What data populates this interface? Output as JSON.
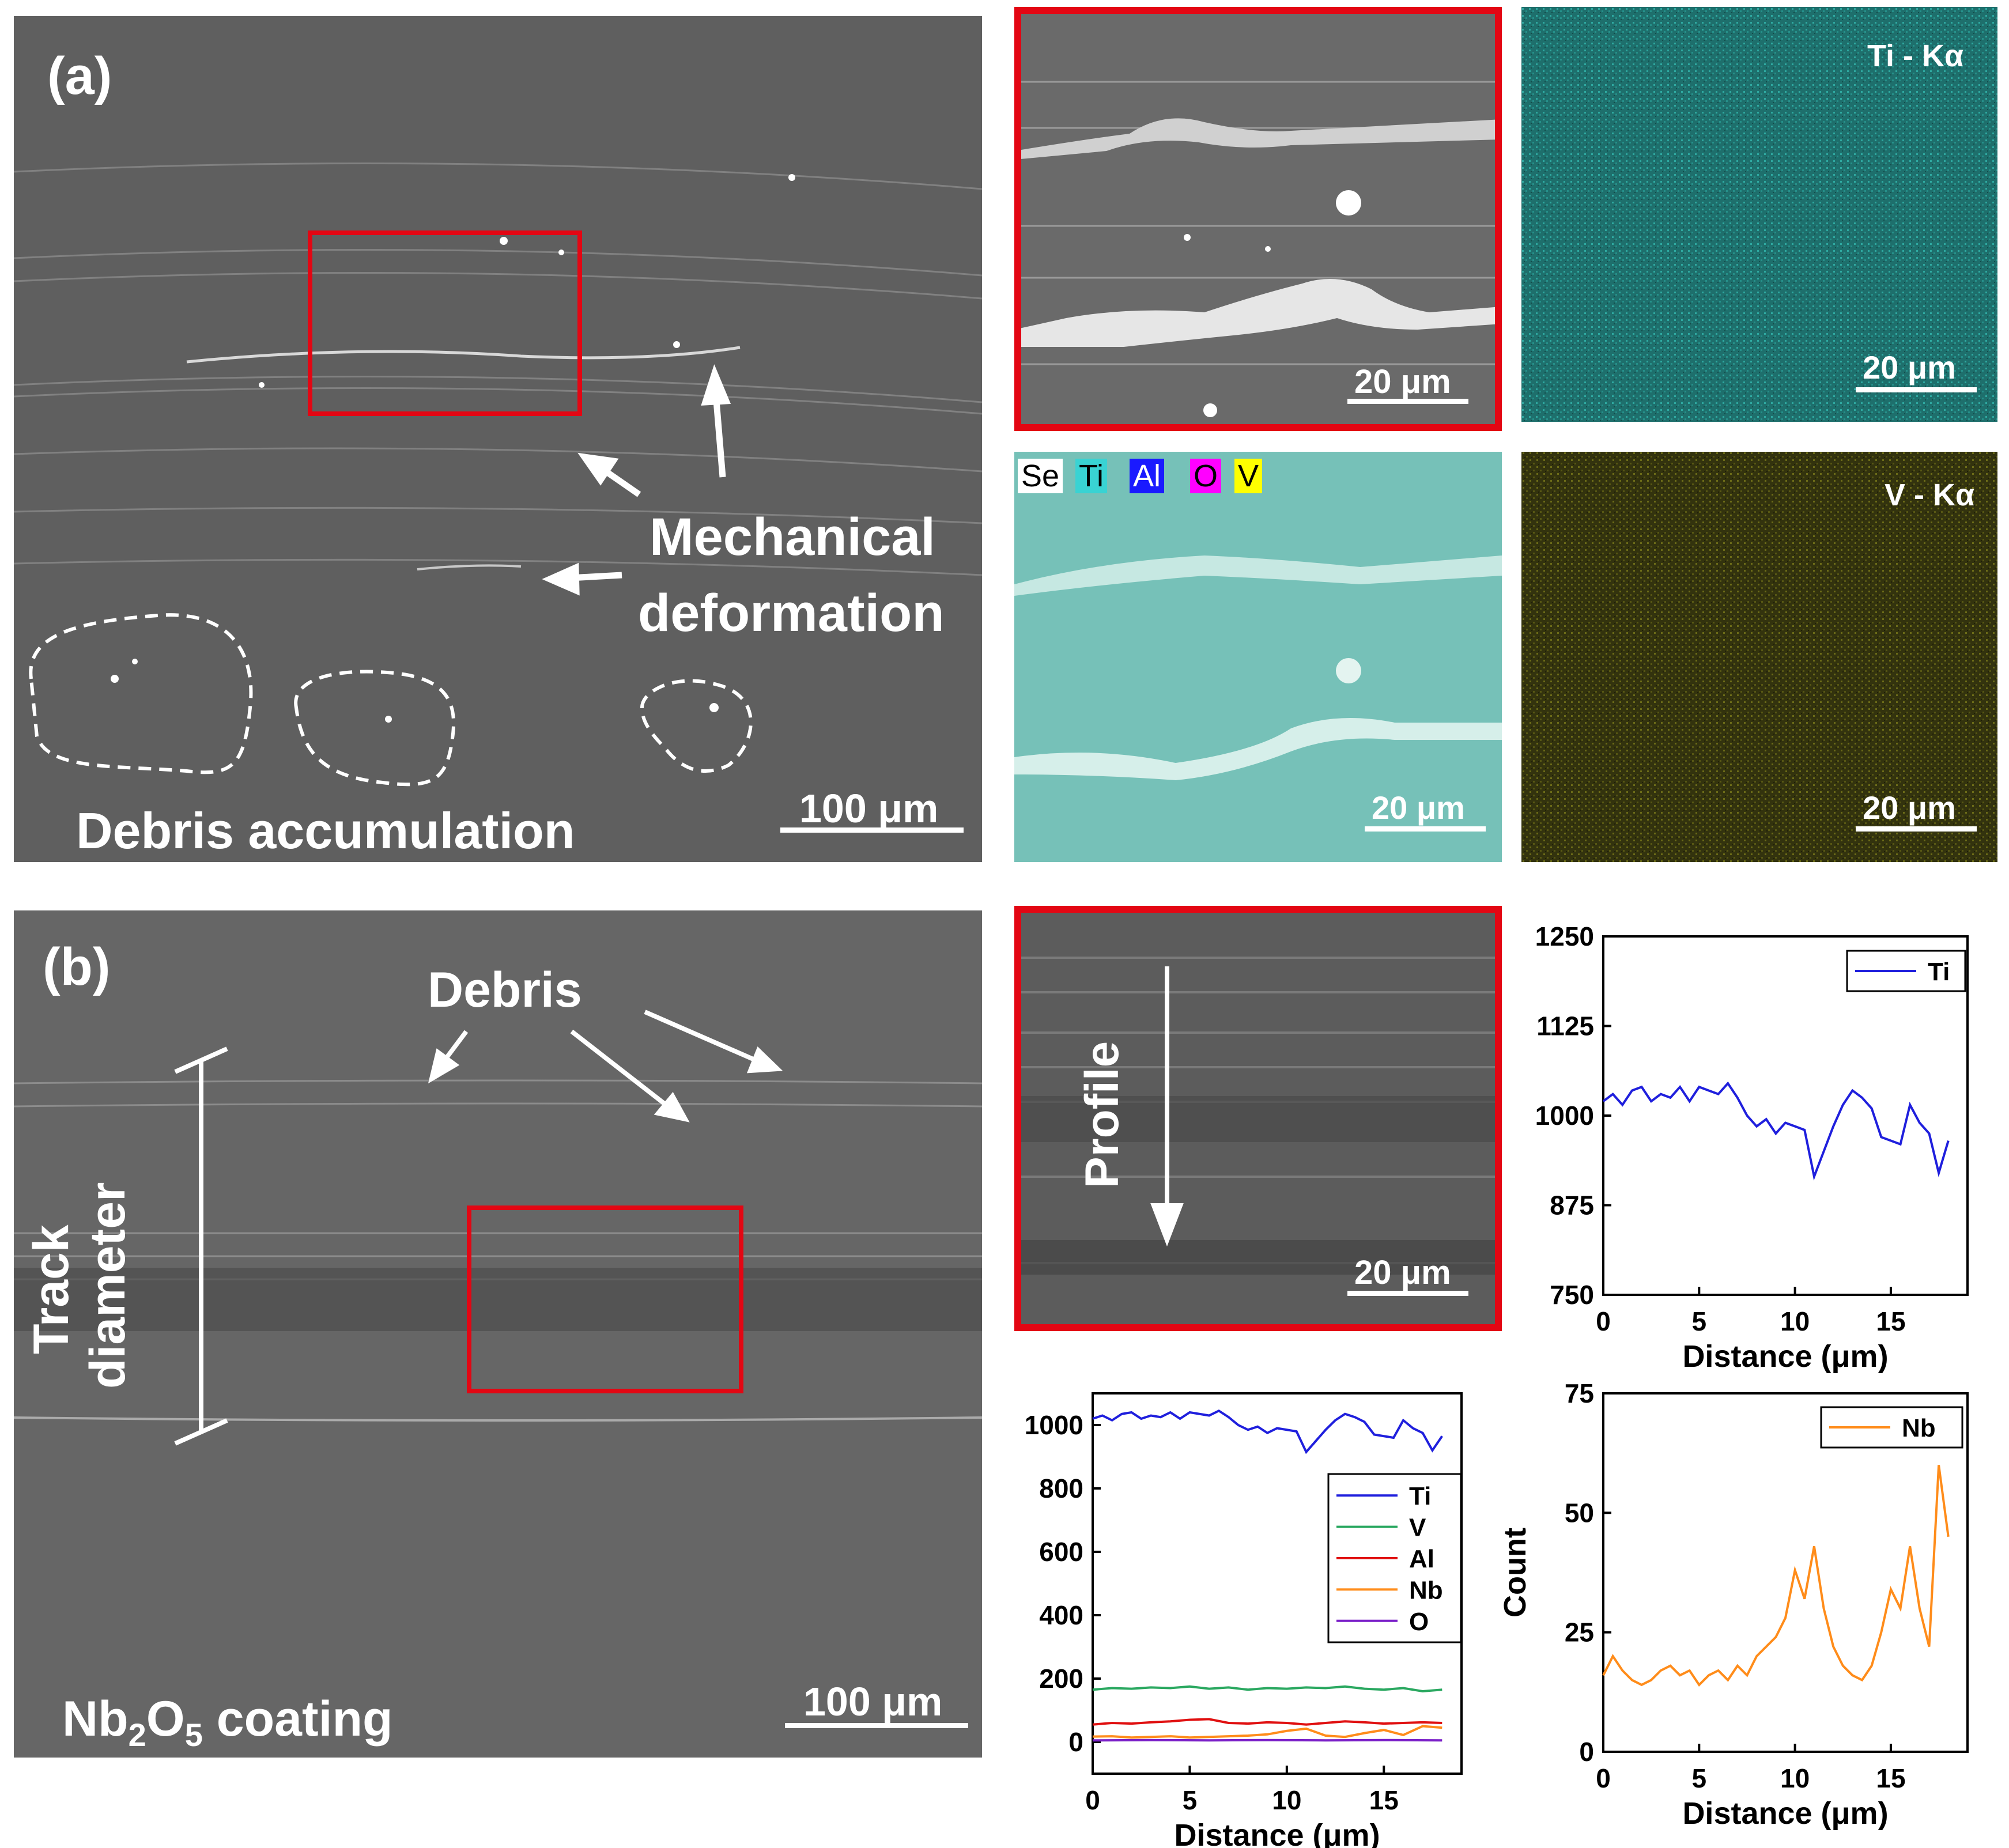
{
  "panel_a": {
    "label": "(a)",
    "annotation_mechanical_1": "Mechanical",
    "annotation_mechanical_2": "deformation",
    "annotation_debris": "Debris accumulation",
    "scale_bar": "100 μm",
    "zoom_scale_bar": "20 μm",
    "ti_map": {
      "title": "Ti - Kα",
      "scale_bar": "20 μm",
      "color": "#2a8f8a"
    },
    "v_map": {
      "title": "V - Kα",
      "scale_bar": "20 μm",
      "color": "#5a5a14"
    },
    "overlay": {
      "scale_bar": "20 μm",
      "legend": [
        {
          "label": "Se",
          "bg": "#ffffff",
          "fg": "#000000"
        },
        {
          "label": "Ti",
          "bg": "#39d3d3",
          "fg": "#000000"
        },
        {
          "label": "Al",
          "bg": "#1a1aff",
          "fg": "#ffffff"
        },
        {
          "label": "O",
          "bg": "#ff00ff",
          "fg": "#000000"
        },
        {
          "label": "V",
          "bg": "#ffff00",
          "fg": "#000000"
        }
      ]
    }
  },
  "panel_b": {
    "label": "(b)",
    "annotation_debris": "Debris",
    "annotation_track_1": "Track",
    "annotation_track_2": "diameter",
    "coating_pre": "Nb",
    "coating_sub1": "2",
    "coating_mid": "O",
    "coating_sub2": "5",
    "coating_post": " coating",
    "scale_bar": "100 μm",
    "profile_label": "Profile",
    "zoom_scale_bar": "20 μm"
  },
  "chart_data": [
    {
      "type": "line",
      "id": "ti_profile",
      "title": "",
      "xlabel": "Distance (μm)",
      "ylabel": "",
      "xlim": [
        0,
        19
      ],
      "ylim": [
        750,
        1250
      ],
      "xticks": [
        0,
        5,
        10,
        15
      ],
      "yticks": [
        750,
        875,
        1000,
        1125,
        1250
      ],
      "legend_position": "top-right",
      "series": [
        {
          "name": "Ti",
          "color": "#1f1fdd",
          "x": [
            0,
            0.5,
            1,
            1.5,
            2,
            2.5,
            3,
            3.5,
            4,
            4.5,
            5,
            5.5,
            6,
            6.5,
            7,
            7.5,
            8,
            8.5,
            9,
            9.5,
            10,
            10.5,
            11,
            11.5,
            12,
            12.5,
            13,
            13.5,
            14,
            14.5,
            15,
            15.5,
            16,
            16.5,
            17,
            17.5,
            18
          ],
          "y": [
            1020,
            1030,
            1015,
            1035,
            1040,
            1020,
            1030,
            1025,
            1040,
            1020,
            1040,
            1035,
            1030,
            1045,
            1025,
            1000,
            985,
            995,
            975,
            990,
            985,
            980,
            915,
            950,
            985,
            1015,
            1035,
            1025,
            1010,
            970,
            965,
            960,
            1015,
            990,
            975,
            920,
            965
          ]
        }
      ]
    },
    {
      "type": "line",
      "id": "all_elements_profile",
      "title": "",
      "xlabel": "Distance (μm)",
      "ylabel": "",
      "xlim": [
        0,
        19
      ],
      "ylim": [
        -100,
        1100
      ],
      "xticks": [
        0,
        5,
        10,
        15
      ],
      "yticks": [
        0,
        200,
        400,
        600,
        800,
        1000
      ],
      "legend_position": "middle-right",
      "series": [
        {
          "name": "Ti",
          "color": "#1f1fdd",
          "x": [
            0,
            0.5,
            1,
            1.5,
            2,
            2.5,
            3,
            3.5,
            4,
            4.5,
            5,
            5.5,
            6,
            6.5,
            7,
            7.5,
            8,
            8.5,
            9,
            9.5,
            10,
            10.5,
            11,
            11.5,
            12,
            12.5,
            13,
            13.5,
            14,
            14.5,
            15,
            15.5,
            16,
            16.5,
            17,
            17.5,
            18
          ],
          "y": [
            1020,
            1030,
            1015,
            1035,
            1040,
            1020,
            1030,
            1025,
            1040,
            1020,
            1040,
            1035,
            1030,
            1045,
            1025,
            1000,
            985,
            995,
            975,
            990,
            985,
            980,
            915,
            950,
            985,
            1015,
            1035,
            1025,
            1010,
            970,
            965,
            960,
            1015,
            990,
            975,
            920,
            965
          ]
        },
        {
          "name": "V",
          "color": "#2aa860",
          "x": [
            0,
            1,
            2,
            3,
            4,
            5,
            6,
            7,
            8,
            9,
            10,
            11,
            12,
            13,
            14,
            15,
            16,
            17,
            18
          ],
          "y": [
            165,
            170,
            168,
            172,
            170,
            175,
            168,
            172,
            165,
            170,
            168,
            172,
            170,
            175,
            168,
            165,
            170,
            160,
            165
          ]
        },
        {
          "name": "Al",
          "color": "#e01010",
          "x": [
            0,
            1,
            2,
            3,
            4,
            5,
            6,
            7,
            8,
            9,
            10,
            11,
            12,
            13,
            14,
            15,
            16,
            17,
            18
          ],
          "y": [
            55,
            60,
            58,
            62,
            65,
            70,
            72,
            60,
            58,
            62,
            60,
            55,
            60,
            65,
            62,
            58,
            60,
            62,
            60
          ]
        },
        {
          "name": "Nb",
          "color": "#ff8c1a",
          "x": [
            0,
            1,
            2,
            3,
            4,
            5,
            6,
            7,
            8,
            9,
            10,
            11,
            12,
            13,
            14,
            15,
            16,
            17,
            18
          ],
          "y": [
            17,
            18,
            14,
            16,
            18,
            14,
            16,
            18,
            20,
            24,
            35,
            42,
            20,
            16,
            28,
            38,
            22,
            50,
            45
          ]
        },
        {
          "name": "O",
          "color": "#7a1fc8",
          "x": [
            0,
            3,
            6,
            9,
            12,
            15,
            18
          ],
          "y": [
            5,
            6,
            5,
            6,
            5,
            6,
            5
          ]
        }
      ]
    },
    {
      "type": "line",
      "id": "nb_profile",
      "title": "",
      "xlabel": "Distance (μm)",
      "ylabel": "Count",
      "xlim": [
        0,
        19
      ],
      "ylim": [
        0,
        75
      ],
      "xticks": [
        0,
        5,
        10,
        15
      ],
      "yticks": [
        0,
        25,
        50,
        75
      ],
      "legend_position": "top-right",
      "series": [
        {
          "name": "Nb",
          "color": "#ff8c1a",
          "x": [
            0,
            0.5,
            1,
            1.5,
            2,
            2.5,
            3,
            3.5,
            4,
            4.5,
            5,
            5.5,
            6,
            6.5,
            7,
            7.5,
            8,
            8.5,
            9,
            9.5,
            10,
            10.5,
            11,
            11.5,
            12,
            12.5,
            13,
            13.5,
            14,
            14.5,
            15,
            15.5,
            16,
            16.5,
            17,
            17.5,
            18
          ],
          "y": [
            16,
            20,
            17,
            15,
            14,
            15,
            17,
            18,
            16,
            17,
            14,
            16,
            17,
            15,
            18,
            16,
            20,
            22,
            24,
            28,
            38,
            32,
            43,
            30,
            22,
            18,
            16,
            15,
            18,
            25,
            34,
            30,
            43,
            30,
            22,
            60,
            45
          ]
        }
      ]
    }
  ]
}
